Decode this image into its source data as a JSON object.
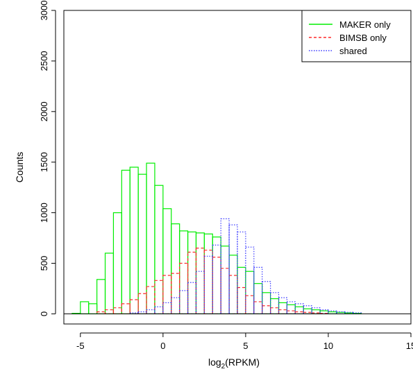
{
  "chart_data": {
    "type": "histogram",
    "xlabel_main": "log",
    "xlabel_sub": "2",
    "xlabel_rest": "(RPKM)",
    "ylabel": "Counts",
    "xlim": [
      -6,
      15
    ],
    "ylim": [
      -100,
      3000
    ],
    "x_ticks": [
      -5,
      0,
      5,
      10,
      15
    ],
    "y_ticks": [
      0,
      500,
      1000,
      1500,
      2000,
      2500,
      3000
    ],
    "bin_width": 0.5,
    "grid": false,
    "legend_position": "top-right",
    "colors": {
      "maker": "#00ee00",
      "bimsb": "#ff2a2a",
      "shared": "#3a3aff",
      "baseline": "#000000"
    },
    "series": [
      {
        "name": "MAKER only",
        "style": "solid",
        "color": "#00ee00",
        "bins": [
          [
            -5.5,
            5
          ],
          [
            -5.0,
            120
          ],
          [
            -4.5,
            100
          ],
          [
            -4.0,
            340
          ],
          [
            -3.5,
            600
          ],
          [
            -3.0,
            1000
          ],
          [
            -2.5,
            1420
          ],
          [
            -2.0,
            1450
          ],
          [
            -1.5,
            1380
          ],
          [
            -1.0,
            1490
          ],
          [
            -0.5,
            1270
          ],
          [
            0.0,
            1040
          ],
          [
            0.5,
            890
          ],
          [
            1.0,
            820
          ],
          [
            1.5,
            810
          ],
          [
            2.0,
            800
          ],
          [
            2.5,
            790
          ],
          [
            3.0,
            760
          ],
          [
            3.5,
            670
          ],
          [
            4.0,
            580
          ],
          [
            4.5,
            460
          ],
          [
            5.0,
            420
          ],
          [
            5.5,
            300
          ],
          [
            6.0,
            210
          ],
          [
            6.5,
            150
          ],
          [
            7.0,
            110
          ],
          [
            7.5,
            90
          ],
          [
            8.0,
            70
          ],
          [
            8.5,
            50
          ],
          [
            9.0,
            40
          ],
          [
            9.5,
            30
          ],
          [
            10.0,
            20
          ],
          [
            10.5,
            15
          ],
          [
            11.0,
            10
          ],
          [
            11.5,
            5
          ]
        ]
      },
      {
        "name": "BIMSB only",
        "style": "dashed",
        "color": "#ff2a2a",
        "bins": [
          [
            -4.0,
            20
          ],
          [
            -3.5,
            40
          ],
          [
            -3.0,
            60
          ],
          [
            -2.5,
            100
          ],
          [
            -2.0,
            140
          ],
          [
            -1.5,
            200
          ],
          [
            -1.0,
            270
          ],
          [
            -0.5,
            330
          ],
          [
            0.0,
            380
          ],
          [
            0.5,
            400
          ],
          [
            1.0,
            500
          ],
          [
            1.5,
            610
          ],
          [
            2.0,
            650
          ],
          [
            2.5,
            630
          ],
          [
            3.0,
            560
          ],
          [
            3.5,
            450
          ],
          [
            4.0,
            380
          ],
          [
            4.5,
            260
          ],
          [
            5.0,
            180
          ],
          [
            5.5,
            120
          ],
          [
            6.0,
            80
          ],
          [
            6.5,
            60
          ],
          [
            7.0,
            40
          ],
          [
            7.5,
            30
          ],
          [
            8.0,
            20
          ],
          [
            8.5,
            15
          ],
          [
            9.0,
            10
          ],
          [
            9.5,
            5
          ]
        ]
      },
      {
        "name": "shared",
        "style": "dotted",
        "color": "#3a3aff",
        "bins": [
          [
            -2.0,
            10
          ],
          [
            -1.5,
            20
          ],
          [
            -1.0,
            40
          ],
          [
            -0.5,
            70
          ],
          [
            0.0,
            110
          ],
          [
            0.5,
            160
          ],
          [
            1.0,
            230
          ],
          [
            1.5,
            310
          ],
          [
            2.0,
            420
          ],
          [
            2.5,
            570
          ],
          [
            3.0,
            680
          ],
          [
            3.5,
            940
          ],
          [
            4.0,
            880
          ],
          [
            4.5,
            810
          ],
          [
            5.0,
            660
          ],
          [
            5.5,
            460
          ],
          [
            6.0,
            320
          ],
          [
            6.5,
            210
          ],
          [
            7.0,
            160
          ],
          [
            7.5,
            120
          ],
          [
            8.0,
            100
          ],
          [
            8.5,
            80
          ],
          [
            9.0,
            60
          ],
          [
            9.5,
            40
          ],
          [
            10.0,
            30
          ],
          [
            10.5,
            20
          ],
          [
            11.0,
            15
          ],
          [
            11.5,
            10
          ]
        ]
      }
    ]
  }
}
